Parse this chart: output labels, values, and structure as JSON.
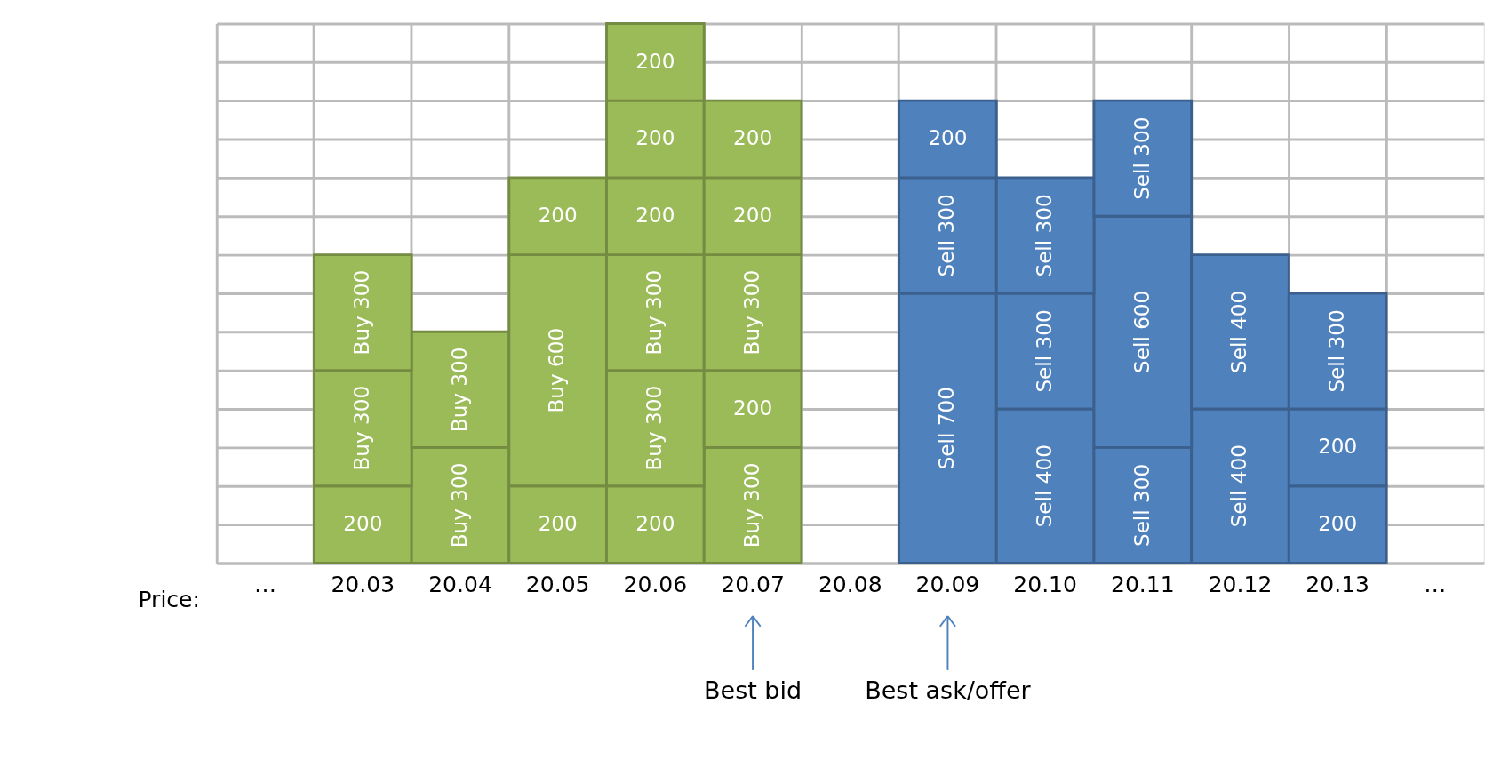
{
  "chart_data": {
    "type": "bar",
    "stacked": true,
    "xlabel": "Price:",
    "categories": [
      "…",
      "20.03",
      "20.04",
      "20.05",
      "20.06",
      "20.07",
      "20.08",
      "20.09",
      "20.10",
      "20.11",
      "20.12",
      "20.13",
      "…"
    ],
    "series": [
      {
        "colors": [
          null,
          "#9bbb59",
          "#9bbb59",
          "#9bbb59",
          "#9bbb59",
          "#9bbb59",
          null,
          "#4f81bd",
          "#4f81bd",
          "#4f81bd",
          "#4f81bd",
          "#4f81bd",
          null
        ],
        "values": [
          null,
          200,
          300,
          200,
          200,
          300,
          null,
          700,
          400,
          300,
          400,
          200,
          null
        ],
        "value_labels": [
          null,
          "200",
          "Buy 300",
          "200",
          "200",
          "Buy 300",
          null,
          "Sell 700",
          "Sell 400",
          "Sell 300",
          "Sell 400",
          "200",
          null
        ]
      },
      {
        "colors": [
          null,
          "#9bbb59",
          "#9bbb59",
          "#9bbb59",
          "#9bbb59",
          "#9bbb59",
          null,
          "#4f81bd",
          "#4f81bd",
          "#4f81bd",
          "#4f81bd",
          "#4f81bd",
          null
        ],
        "values": [
          null,
          300,
          300,
          600,
          300,
          200,
          null,
          300,
          300,
          600,
          400,
          200,
          null
        ],
        "value_labels": [
          null,
          "Buy 300",
          "Buy 300",
          "Buy 600",
          "Buy 300",
          "200",
          null,
          "Sell 300",
          "Sell 300",
          "Sell 600",
          "Sell 400",
          "200",
          null
        ]
      },
      {
        "colors": [
          null,
          "#9bbb59",
          null,
          "#9bbb59",
          "#9bbb59",
          "#9bbb59",
          null,
          "#4f81bd",
          "#4f81bd",
          "#4f81bd",
          null,
          "#4f81bd",
          null
        ],
        "values": [
          null,
          300,
          null,
          200,
          300,
          300,
          null,
          200,
          300,
          300,
          null,
          300,
          null
        ],
        "value_labels": [
          null,
          "Buy 300",
          null,
          "200",
          "Buy 300",
          "Buy 300",
          null,
          "200",
          "Sell 300",
          "Sell 300",
          null,
          "Sell 300",
          null
        ]
      },
      {
        "colors": [
          null,
          null,
          null,
          null,
          "#9bbb59",
          "#9bbb59",
          null,
          null,
          null,
          null,
          null,
          null,
          null
        ],
        "values": [
          null,
          null,
          null,
          null,
          200,
          200,
          null,
          null,
          null,
          null,
          null,
          null,
          null
        ],
        "value_labels": [
          null,
          null,
          null,
          null,
          "200",
          "200",
          null,
          null,
          null,
          null,
          null,
          null,
          null
        ]
      },
      {
        "colors": [
          null,
          null,
          null,
          null,
          "#9bbb59",
          "#9bbb59",
          null,
          null,
          null,
          null,
          null,
          null,
          null
        ],
        "values": [
          null,
          null,
          null,
          null,
          200,
          200,
          null,
          null,
          null,
          null,
          null,
          null,
          null
        ],
        "value_labels": [
          null,
          null,
          null,
          null,
          "200",
          "200",
          null,
          null,
          null,
          null,
          null,
          null,
          null
        ]
      },
      {
        "colors": [
          null,
          null,
          null,
          null,
          "#9bbb59",
          null,
          null,
          null,
          null,
          null,
          null,
          null,
          null
        ],
        "values": [
          null,
          null,
          null,
          null,
          200,
          null,
          null,
          null,
          null,
          null,
          null,
          null,
          null
        ],
        "value_labels": [
          null,
          null,
          null,
          null,
          "200",
          null,
          null,
          null,
          null,
          null,
          null,
          null,
          null
        ]
      }
    ],
    "ylim": [
      0,
      1400
    ],
    "yticks": [
      {
        "value": 0,
        "label": null
      },
      {
        "value": 100,
        "label": null
      },
      {
        "value": 200,
        "label": null
      },
      {
        "value": 300,
        "label": null
      },
      {
        "value": 400,
        "label": null
      },
      {
        "value": 500,
        "label": null
      },
      {
        "value": 600,
        "label": null
      },
      {
        "value": 700,
        "label": null
      },
      {
        "value": 800,
        "label": null
      },
      {
        "value": 900,
        "label": null
      },
      {
        "value": 1000,
        "label": null
      },
      {
        "value": 1100,
        "label": null
      },
      {
        "value": 1200,
        "label": null
      },
      {
        "value": 1300,
        "label": null
      },
      {
        "value": 1400,
        "label": null
      }
    ],
    "tick_labels": "x",
    "grid": true,
    "annotations": [
      {
        "text": "Best bid",
        "x": "20.07"
      },
      {
        "text": "Best ask/offer",
        "x": "20.09"
      }
    ]
  }
}
